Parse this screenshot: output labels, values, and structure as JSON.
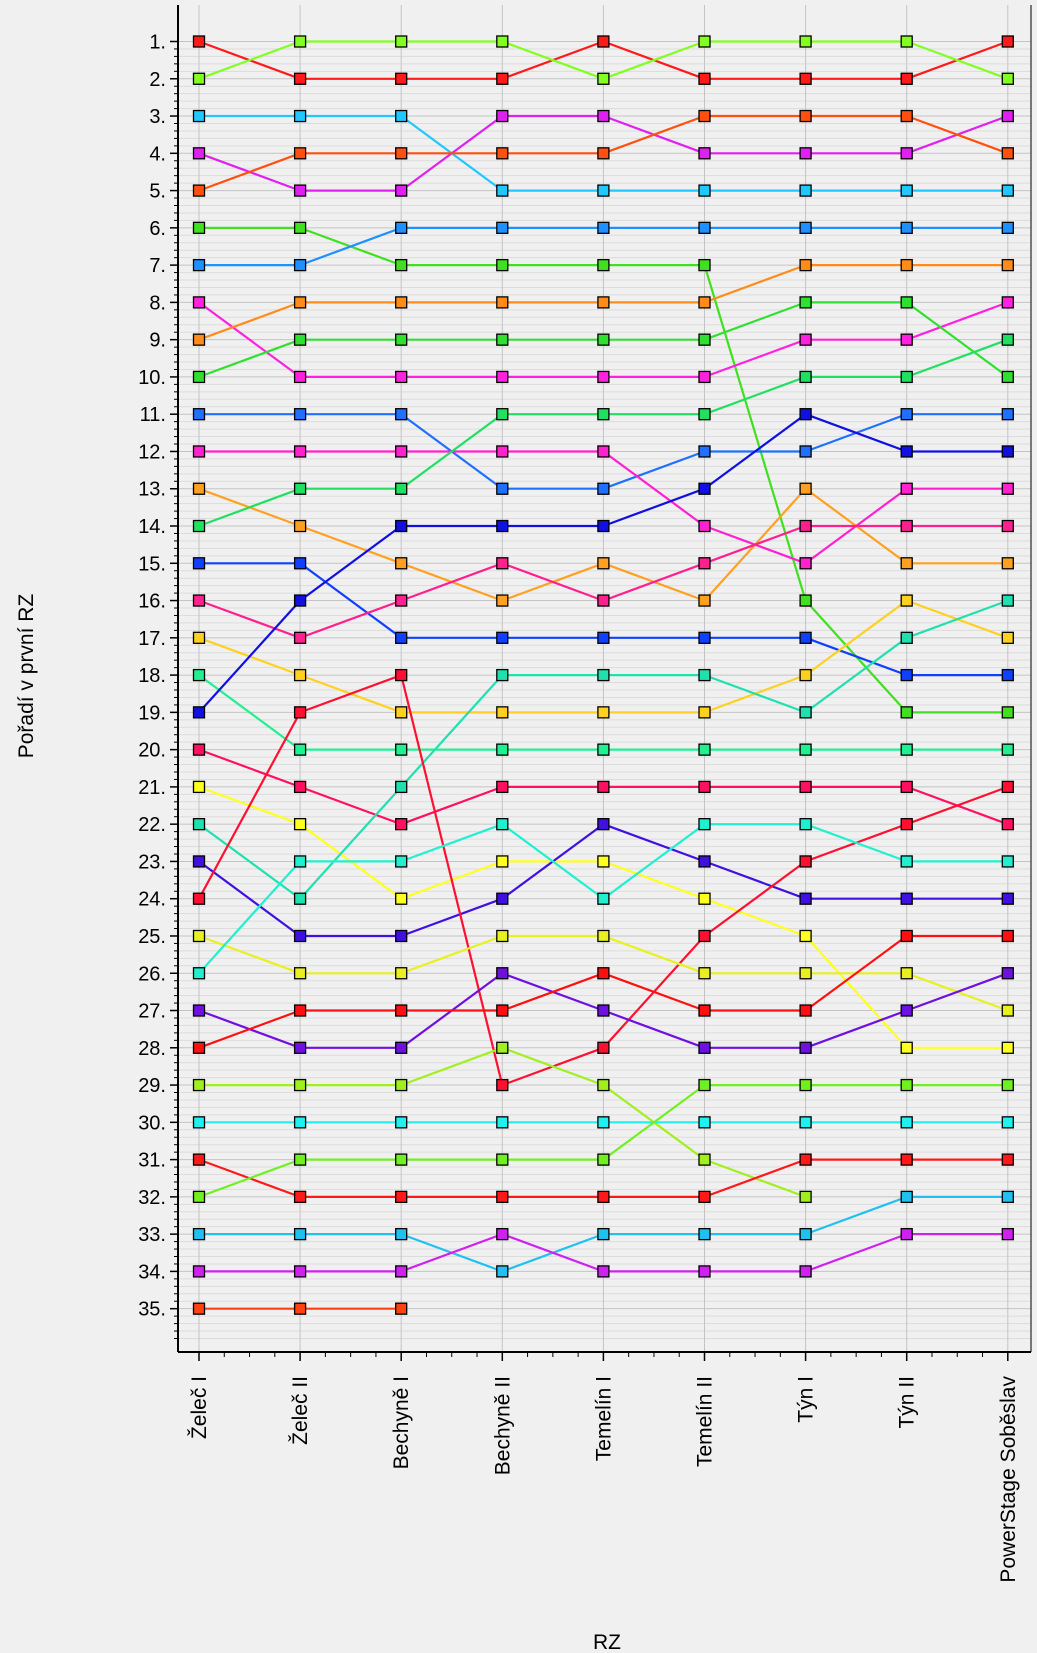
{
  "chart_data": {
    "type": "line",
    "title": "",
    "xlabel": "RZ",
    "ylabel": "Pořadí v první RZ",
    "x": [
      "Želeč I",
      "Želeč II",
      "Bechyně I",
      "Bechyně II",
      "Temelín I",
      "Temelín II",
      "Týn I",
      "Týn II",
      "PowerStage Soběslav"
    ],
    "y_ticks": [
      "1.",
      "2.",
      "3.",
      "4.",
      "5.",
      "6.",
      "7.",
      "8.",
      "9.",
      "10.",
      "11.",
      "12.",
      "13.",
      "14.",
      "15.",
      "16.",
      "17.",
      "18.",
      "19.",
      "20.",
      "21.",
      "22.",
      "23.",
      "24.",
      "25.",
      "26.",
      "27.",
      "28.",
      "29.",
      "30.",
      "31.",
      "32.",
      "33.",
      "34.",
      "35."
    ],
    "ylim": [
      35,
      1
    ],
    "y_inverted": true,
    "grid": true,
    "legend": "none",
    "series": [
      {
        "color": "#ff1a1a",
        "values": [
          1,
          2,
          2,
          2,
          1,
          2,
          2,
          2,
          1
        ]
      },
      {
        "color": "#80ff20",
        "values": [
          2,
          1,
          1,
          1,
          2,
          1,
          1,
          1,
          2
        ]
      },
      {
        "color": "#20c8ff",
        "values": [
          3,
          3,
          3,
          5,
          5,
          5,
          5,
          5,
          5
        ]
      },
      {
        "color": "#e020f0",
        "values": [
          4,
          5,
          5,
          3,
          3,
          4,
          4,
          4,
          3
        ]
      },
      {
        "color": "#ff5010",
        "values": [
          5,
          4,
          4,
          4,
          4,
          3,
          3,
          3,
          4
        ]
      },
      {
        "color": "#40e020",
        "values": [
          6,
          6,
          7,
          7,
          7,
          7,
          16,
          19,
          19
        ]
      },
      {
        "color": "#1e90ff",
        "values": [
          7,
          7,
          6,
          6,
          6,
          6,
          6,
          6,
          6
        ]
      },
      {
        "color": "#ff20e0",
        "values": [
          8,
          10,
          10,
          10,
          10,
          10,
          9,
          9,
          8
        ]
      },
      {
        "color": "#ff8c1a",
        "values": [
          9,
          8,
          8,
          8,
          8,
          8,
          7,
          7,
          7
        ]
      },
      {
        "color": "#30e030",
        "values": [
          10,
          9,
          9,
          9,
          9,
          9,
          8,
          8,
          10
        ]
      },
      {
        "color": "#2070ff",
        "values": [
          11,
          11,
          11,
          13,
          13,
          12,
          12,
          11,
          11
        ]
      },
      {
        "color": "#ff20d0",
        "values": [
          12,
          12,
          12,
          12,
          12,
          14,
          15,
          13,
          13
        ]
      },
      {
        "color": "#ffa020",
        "values": [
          13,
          14,
          15,
          16,
          15,
          16,
          13,
          15,
          15
        ]
      },
      {
        "color": "#20e060",
        "values": [
          14,
          13,
          13,
          11,
          11,
          11,
          10,
          10,
          9
        ]
      },
      {
        "color": "#1040ff",
        "values": [
          15,
          15,
          17,
          17,
          17,
          17,
          17,
          18,
          18
        ]
      },
      {
        "color": "#ff2090",
        "values": [
          16,
          17,
          16,
          15,
          16,
          15,
          14,
          14,
          14
        ]
      },
      {
        "color": "#ffd020",
        "values": [
          17,
          18,
          19,
          19,
          19,
          19,
          18,
          16,
          17
        ]
      },
      {
        "color": "#20f090",
        "values": [
          18,
          20,
          20,
          20,
          20,
          20,
          20,
          20,
          20
        ]
      },
      {
        "color": "#1010e0",
        "values": [
          19,
          16,
          14,
          14,
          14,
          13,
          11,
          12,
          12
        ]
      },
      {
        "color": "#ff1060",
        "values": [
          20,
          21,
          22,
          21,
          21,
          21,
          21,
          21,
          22
        ]
      },
      {
        "color": "#ffff20",
        "values": [
          21,
          22,
          24,
          23,
          23,
          24,
          25,
          28,
          28
        ]
      },
      {
        "color": "#20e0b0",
        "values": [
          22,
          24,
          21,
          18,
          18,
          18,
          19,
          17,
          16
        ]
      },
      {
        "color": "#4010e0",
        "values": [
          23,
          25,
          25,
          24,
          22,
          23,
          24,
          24,
          24
        ]
      },
      {
        "color": "#ff1030",
        "values": [
          24,
          19,
          18,
          29,
          28,
          25,
          23,
          22,
          21
        ]
      },
      {
        "color": "#e8f020",
        "values": [
          25,
          26,
          26,
          25,
          25,
          26,
          26,
          26,
          27
        ]
      },
      {
        "color": "#20f0d0",
        "values": [
          26,
          23,
          23,
          22,
          24,
          22,
          22,
          23,
          23
        ]
      },
      {
        "color": "#7010e0",
        "values": [
          27,
          28,
          28,
          26,
          27,
          28,
          28,
          27,
          26
        ]
      },
      {
        "color": "#ff1010",
        "values": [
          28,
          27,
          27,
          27,
          26,
          27,
          27,
          25,
          25
        ]
      },
      {
        "color": "#a0f020",
        "values": [
          29,
          29,
          29,
          28,
          29,
          31,
          32,
          null,
          null
        ]
      },
      {
        "color": "#20f0f0",
        "values": [
          30,
          30,
          30,
          30,
          30,
          30,
          30,
          30,
          30
        ]
      },
      {
        "color": "#ff1818",
        "values": [
          31,
          32,
          32,
          32,
          32,
          32,
          31,
          31,
          31
        ]
      },
      {
        "color": "#70f020",
        "values": [
          32,
          31,
          31,
          31,
          31,
          29,
          29,
          29,
          29
        ]
      },
      {
        "color": "#20c0f0",
        "values": [
          33,
          33,
          33,
          34,
          33,
          33,
          33,
          32,
          32
        ]
      },
      {
        "color": "#d020f0",
        "values": [
          34,
          34,
          34,
          33,
          34,
          34,
          34,
          33,
          33
        ]
      },
      {
        "color": "#ff4010",
        "values": [
          35,
          35,
          35,
          null,
          null,
          null,
          null,
          null,
          null
        ]
      }
    ]
  }
}
